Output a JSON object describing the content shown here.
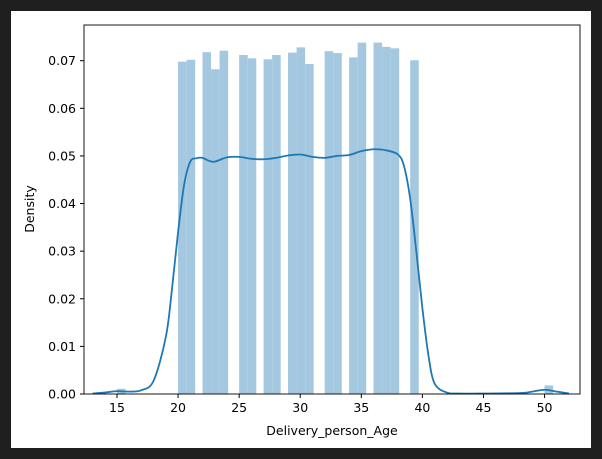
{
  "colors": {
    "window_frame": "#1f1f1f",
    "figure_background": "#ffffff",
    "bar_fill": "#a4c8e0",
    "kde_line": "#1f77b4",
    "axes": "#000000"
  },
  "chart_data": {
    "type": "bar",
    "title": "",
    "xlabel": "Delivery_person_Age",
    "ylabel": "Density",
    "xlim": [
      12.3,
      52.9
    ],
    "ylim": [
      0,
      0.0775
    ],
    "xticks": [
      15,
      20,
      25,
      30,
      35,
      40,
      45,
      50
    ],
    "yticks": [
      0.0,
      0.01,
      0.02,
      0.03,
      0.04,
      0.05,
      0.06,
      0.07
    ],
    "ytick_labels": [
      "0.00",
      "0.01",
      "0.02",
      "0.03",
      "0.04",
      "0.05",
      "0.06",
      "0.07"
    ],
    "grid": false,
    "histogram": {
      "bin_width": 0.7,
      "bins": [
        {
          "x": 15.0,
          "density": 0.0011
        },
        {
          "x": 20.0,
          "density": 0.0698
        },
        {
          "x": 20.7,
          "density": 0.0702
        },
        {
          "x": 22.0,
          "density": 0.0718
        },
        {
          "x": 22.7,
          "density": 0.0682
        },
        {
          "x": 23.4,
          "density": 0.0721
        },
        {
          "x": 25.0,
          "density": 0.0712
        },
        {
          "x": 25.7,
          "density": 0.0705
        },
        {
          "x": 27.0,
          "density": 0.0703
        },
        {
          "x": 27.7,
          "density": 0.0712
        },
        {
          "x": 29.0,
          "density": 0.0717
        },
        {
          "x": 29.7,
          "density": 0.0728
        },
        {
          "x": 30.4,
          "density": 0.0693
        },
        {
          "x": 32.0,
          "density": 0.072
        },
        {
          "x": 32.7,
          "density": 0.0716
        },
        {
          "x": 34.0,
          "density": 0.0707
        },
        {
          "x": 34.7,
          "density": 0.0738
        },
        {
          "x": 36.0,
          "density": 0.0738
        },
        {
          "x": 36.7,
          "density": 0.0729
        },
        {
          "x": 37.4,
          "density": 0.0726
        },
        {
          "x": 39.0,
          "density": 0.0701
        },
        {
          "x": 50.0,
          "density": 0.0018
        }
      ]
    },
    "kde": {
      "x": [
        13.0,
        14.0,
        15.0,
        16.0,
        17.0,
        18.0,
        19.0,
        19.5,
        20.0,
        20.5,
        21.0,
        21.5,
        22.0,
        22.5,
        23.0,
        24.0,
        25.0,
        26.0,
        27.0,
        28.0,
        29.0,
        30.0,
        31.0,
        32.0,
        33.0,
        34.0,
        35.0,
        36.0,
        37.0,
        38.0,
        38.5,
        39.0,
        39.5,
        40.0,
        40.5,
        41.0,
        42.0,
        43.0,
        45.0,
        48.0,
        49.0,
        50.0,
        51.0,
        52.0
      ],
      "y": [
        0.0001,
        0.0003,
        0.0006,
        0.0005,
        0.0008,
        0.0028,
        0.012,
        0.022,
        0.034,
        0.044,
        0.0488,
        0.0495,
        0.0496,
        0.049,
        0.0488,
        0.0497,
        0.0498,
        0.0494,
        0.0493,
        0.0496,
        0.0501,
        0.0503,
        0.0498,
        0.0496,
        0.05,
        0.0502,
        0.051,
        0.0514,
        0.0512,
        0.0503,
        0.0478,
        0.041,
        0.03,
        0.018,
        0.008,
        0.0022,
        0.0003,
        0.0001,
        0.0001,
        0.0002,
        0.0005,
        0.0009,
        0.0005,
        0.0001
      ]
    }
  }
}
